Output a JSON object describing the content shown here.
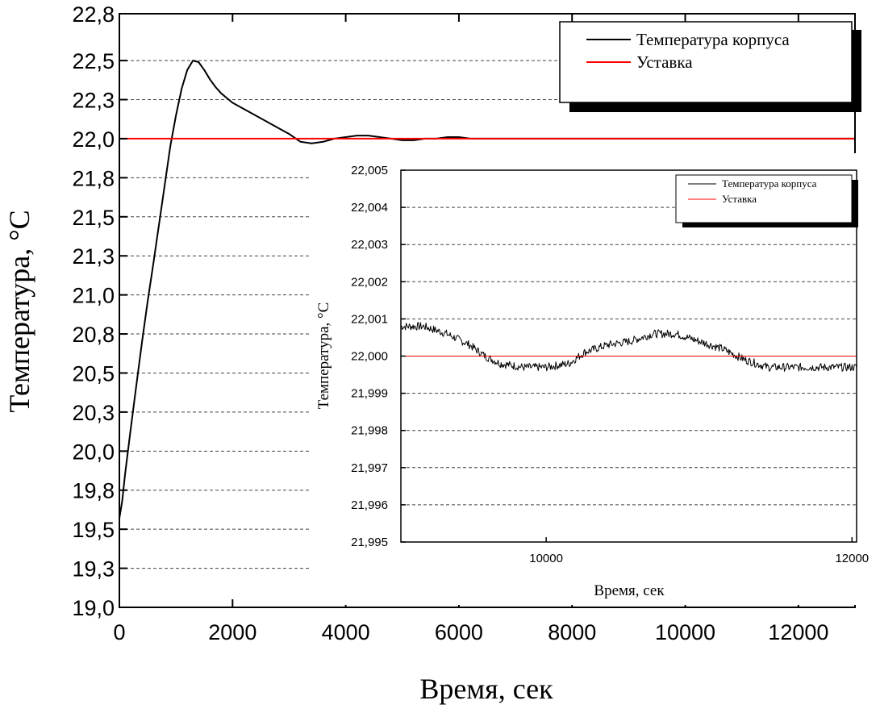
{
  "chart_data": [
    {
      "type": "line",
      "xlabel": "Время, сек",
      "ylabel": "Температура, °C",
      "xlim": [
        0,
        13000
      ],
      "ylim": [
        19.0,
        22.8
      ],
      "x_ticks": [
        0,
        2000,
        4000,
        6000,
        8000,
        10000,
        12000
      ],
      "x_tick_labels": [
        "0",
        "2000",
        "4000",
        "6000",
        "8000",
        "10000",
        "12000"
      ],
      "y_ticks": [
        19.0,
        19.25,
        19.5,
        19.75,
        20.0,
        20.25,
        20.5,
        20.75,
        21.0,
        21.25,
        21.5,
        21.75,
        22.0,
        22.25,
        22.5,
        22.8
      ],
      "y_tick_labels": [
        "19,0",
        "19,3",
        "19,5",
        "19,8",
        "20,0",
        "20,3",
        "20,5",
        "20,8",
        "21,0",
        "21,3",
        "21,5",
        "21,8",
        "22,0",
        "22,3",
        "22,5",
        "22,8"
      ],
      "grid": "horizontal dashed",
      "legend_position": "top-right",
      "series": [
        {
          "name": "Температура корпуса",
          "color": "#000000",
          "x": [
            0,
            50,
            100,
            200,
            300,
            400,
            500,
            600,
            700,
            800,
            900,
            1000,
            1100,
            1200,
            1300,
            1400,
            1500,
            1600,
            1700,
            1800,
            1900,
            2000,
            2200,
            2400,
            2600,
            2800,
            3000,
            3200,
            3400,
            3600,
            3800,
            4000,
            4200,
            4400,
            4600,
            4800,
            5000,
            5200,
            5400,
            5600,
            5800,
            6000,
            6200,
            6400,
            6600,
            6800,
            7000,
            7500,
            8000,
            9000,
            10000,
            11000,
            12000,
            13000
          ],
          "y": [
            19.57,
            19.68,
            19.85,
            20.14,
            20.42,
            20.7,
            20.96,
            21.2,
            21.45,
            21.7,
            21.95,
            22.15,
            22.32,
            22.44,
            22.5,
            22.49,
            22.44,
            22.38,
            22.33,
            22.29,
            22.26,
            22.23,
            22.19,
            22.15,
            22.11,
            22.07,
            22.03,
            21.98,
            21.97,
            21.98,
            22.0,
            22.01,
            22.02,
            22.02,
            22.01,
            22.0,
            21.99,
            21.99,
            22.0,
            22.0,
            22.01,
            22.01,
            22.0,
            22.0,
            22.0,
            22.0,
            22.0,
            22.0,
            22.0,
            22.0,
            22.0,
            22.0,
            22.0,
            22.0
          ]
        },
        {
          "name": "Уставка",
          "color": "#ff0000",
          "x": [
            0,
            13000
          ],
          "y": [
            22.0,
            22.0
          ]
        }
      ]
    },
    {
      "type": "line",
      "xlabel": "Время, сек",
      "ylabel": "Температура, °C",
      "xlim": [
        9050,
        12030
      ],
      "ylim": [
        21.995,
        22.005
      ],
      "x_ticks": [
        10000,
        12000
      ],
      "x_tick_labels": [
        "10000",
        "12000"
      ],
      "y_ticks": [
        21.995,
        21.996,
        21.997,
        21.998,
        21.999,
        22.0,
        22.001,
        22.002,
        22.003,
        22.004,
        22.005
      ],
      "y_tick_labels": [
        "21,995",
        "21,996",
        "21,997",
        "21,998",
        "21,999",
        "22,000",
        "22,001",
        "22,002",
        "22,003",
        "22,004",
        "22,005"
      ],
      "grid": "horizontal dashed",
      "legend_position": "top-right",
      "series": [
        {
          "name": "Температура корпуса",
          "color": "#000000",
          "x": [
            9050,
            9200,
            9350,
            9500,
            9600,
            9700,
            9850,
            10000,
            10150,
            10250,
            10400,
            10550,
            10700,
            10850,
            11000,
            11150,
            11300,
            11450,
            11600,
            11750,
            11900,
            12030
          ],
          "y": [
            22.0008,
            22.0008,
            22.0006,
            22.0003,
            22.0,
            21.9998,
            21.9997,
            21.9997,
            21.9998,
            22.0001,
            22.0003,
            22.0004,
            22.0006,
            22.0006,
            22.0004,
            22.0002,
            21.9999,
            21.9997,
            21.9997,
            21.9997,
            21.9997,
            21.9997
          ]
        },
        {
          "name": "Уставка",
          "color": "#ff0000",
          "x": [
            9050,
            12030
          ],
          "y": [
            22.0,
            22.0
          ]
        }
      ]
    }
  ]
}
